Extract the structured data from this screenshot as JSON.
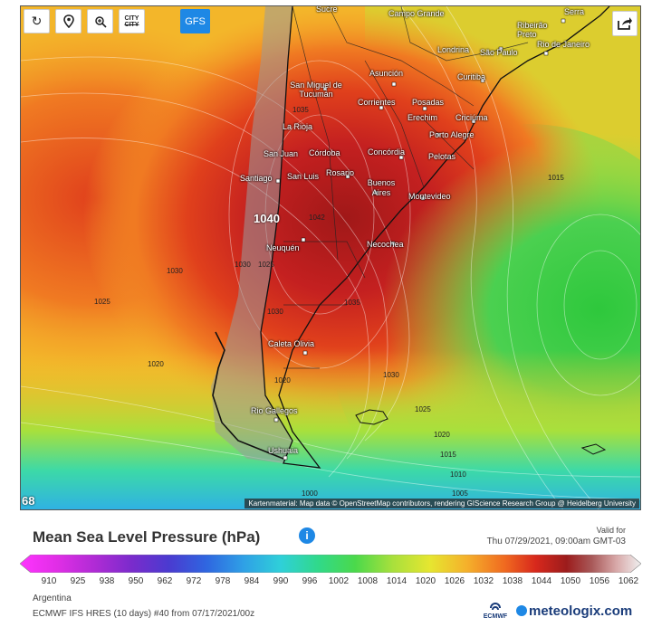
{
  "toolbar": {
    "refresh_icon": "refresh-icon",
    "location_icon": "location-pin-icon",
    "zoom_icon": "zoom-icon",
    "city_top": "CITY",
    "city_bottom": "CITY",
    "model_button": "GFS",
    "share_icon": "share-icon"
  },
  "map": {
    "step_number": "68",
    "attribution": "Kartenmaterial: Map data © OpenStreetMap contributors, rendering GIScience Research Group @ Heidelberg University",
    "cities": [
      "Sucre",
      "Campo Grande",
      "Ribeirão Preto",
      "Serra",
      "Londrina",
      "São Paulo",
      "Rio de Janeiro",
      "Curitiba",
      "San Miguel de Tucumán",
      "Asunción",
      "Corrientes",
      "Posadas",
      "Erechim",
      "Criciúma",
      "La Rioja",
      "Porto Alegre",
      "Concórdia",
      "San Juan",
      "Córdoba",
      "Pelotas",
      "Santiago",
      "San Luis",
      "Rosario",
      "Buenos Aires",
      "Montevideo",
      "Neuquén",
      "Necochea",
      "Caleta Olivia",
      "Rio Gallegos",
      "Ushuaia"
    ],
    "isobar_labels": [
      "1035",
      "1040",
      "1042",
      "1030",
      "1025",
      "1020",
      "1030",
      "1035",
      "1030",
      "1020",
      "1030",
      "1025",
      "1015",
      "1020",
      "1015",
      "1010",
      "1005",
      "1000",
      "1025"
    ],
    "pressure_big": "1040"
  },
  "legend": {
    "title": "Mean Sea Level Pressure (hPa)",
    "info_icon": "info-icon",
    "valid_for": "Valid for",
    "valid_time": "Thu 07/29/2021, 09:00am GMT-03",
    "ticks": [
      "910",
      "925",
      "938",
      "950",
      "962",
      "972",
      "978",
      "984",
      "990",
      "996",
      "1002",
      "1008",
      "1014",
      "1020",
      "1026",
      "1032",
      "1038",
      "1044",
      "1050",
      "1056",
      "1062"
    ],
    "colors": [
      "#ff33ff",
      "#e02ee6",
      "#c02bd9",
      "#9d2bcc",
      "#7a2bcc",
      "#5a33cc",
      "#3f45d6",
      "#2f66e0",
      "#2f8ae6",
      "#2fb0e6",
      "#2fd0d9",
      "#30d9a8",
      "#3cd96e",
      "#6fd94b",
      "#a8e03c",
      "#e0e630",
      "#f5c32b",
      "#f59a26",
      "#f06a20",
      "#e0301c",
      "#c01c1c",
      "#9c1c1c",
      "#9a4a4a",
      "#b87878",
      "#d8a8a8",
      "#eeeeee"
    ]
  },
  "footer": {
    "region": "Argentina",
    "model": "ECMWF IFS HRES (10 days) #40 from 07/17/2021/00z",
    "ecmwf_label": "ECMWF",
    "brand": "meteologix.com"
  }
}
